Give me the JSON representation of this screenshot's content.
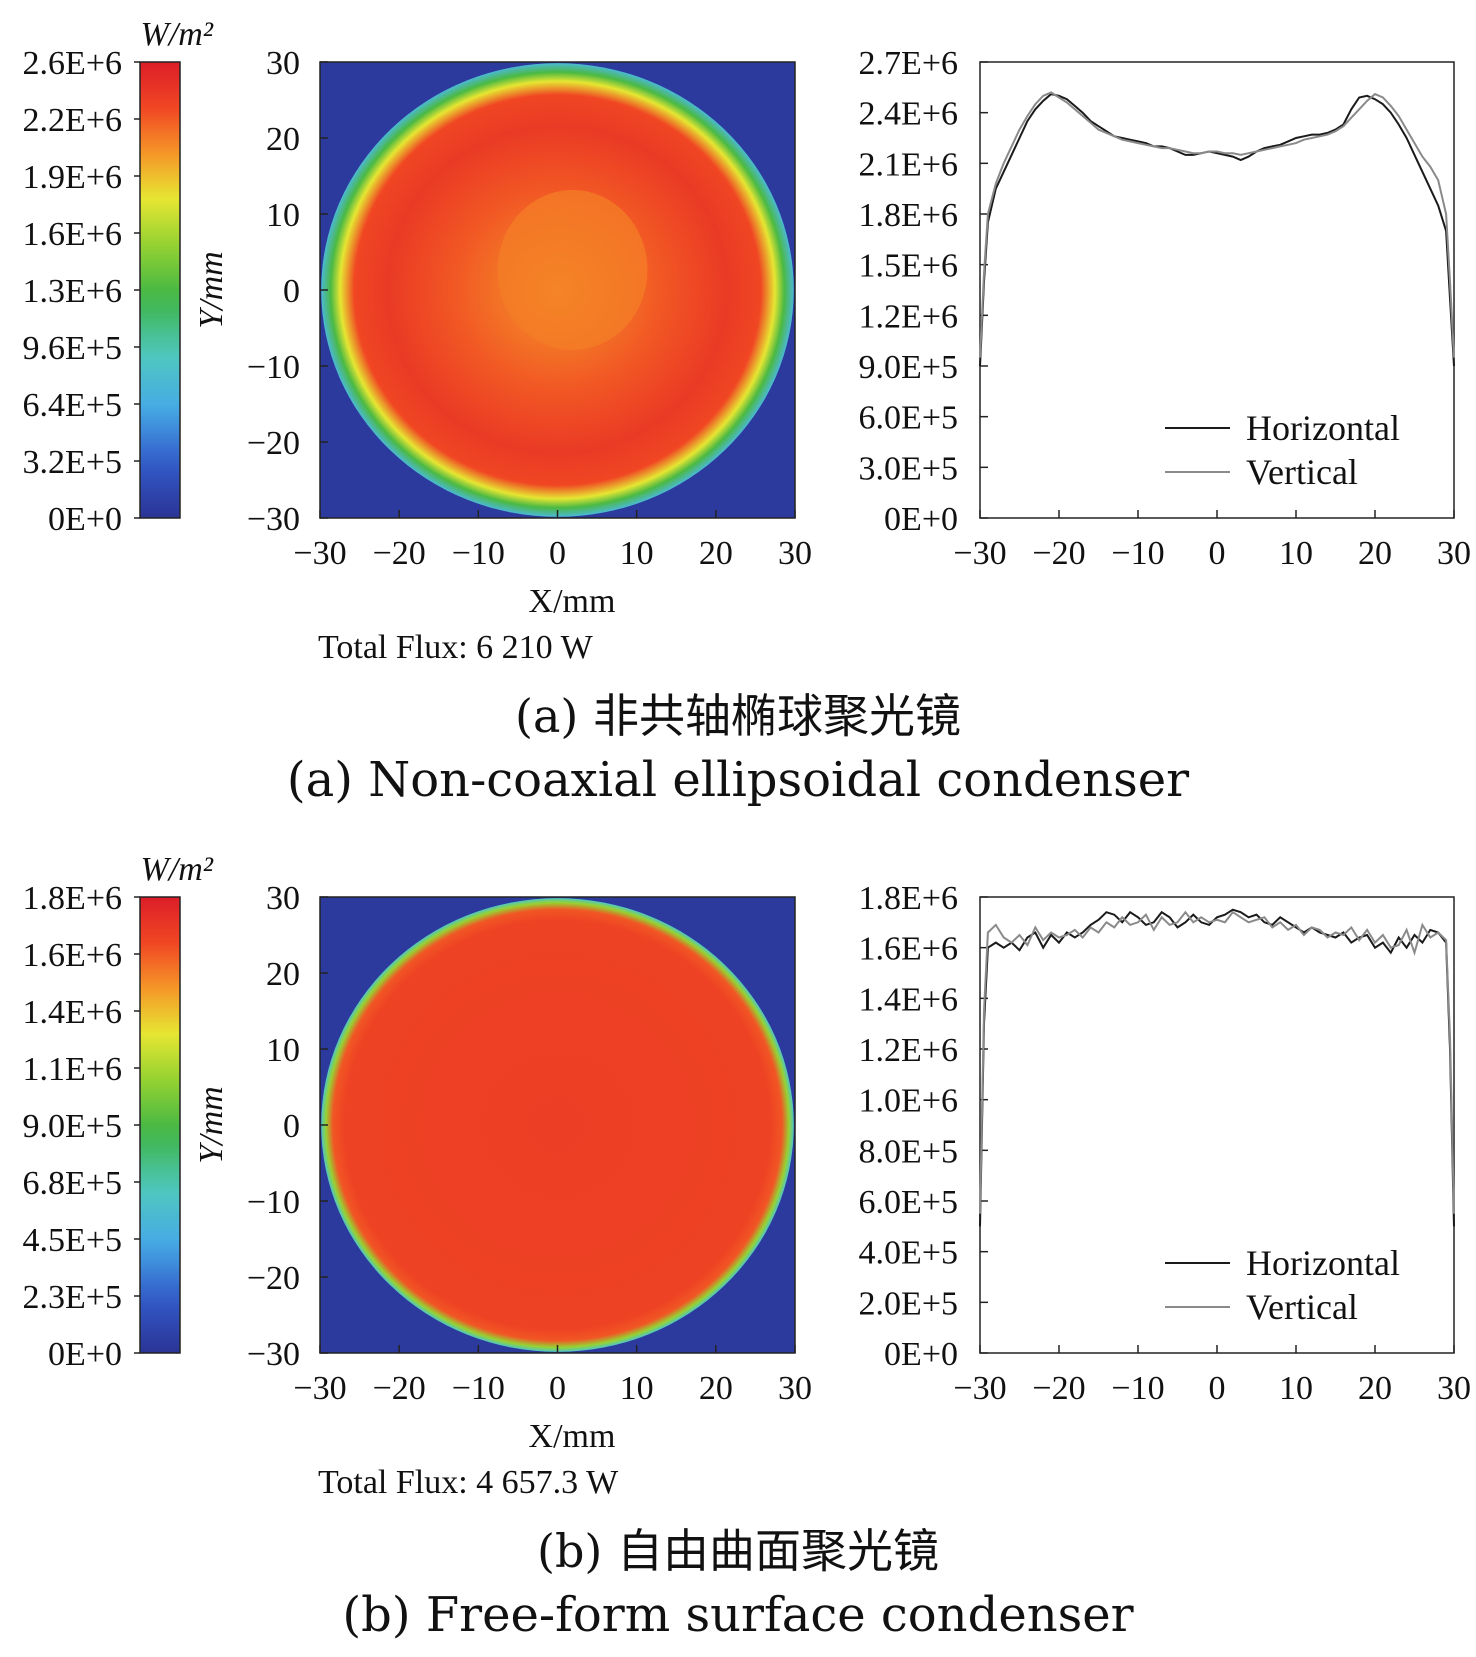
{
  "figures": [
    {
      "colorbar": {
        "unit_label": "W/m²",
        "ticks": [
          "2.6E+6",
          "2.2E+6",
          "1.9E+6",
          "1.6E+6",
          "1.3E+6",
          "9.6E+5",
          "6.4E+5",
          "3.2E+5",
          "0E+0"
        ]
      },
      "map": {
        "y_ticks": [
          "30",
          "20",
          "10",
          "0",
          "−10",
          "−20",
          "−30"
        ],
        "x_ticks": [
          "−30",
          "−20",
          "−10",
          "0",
          "10",
          "20",
          "30"
        ],
        "xlabel": "X/mm",
        "ylabel": "Y/mm",
        "total_flux": "Total Flux: 6 210 W"
      },
      "profile": {
        "y_ticks": [
          "2.7E+6",
          "2.4E+6",
          "2.1E+6",
          "1.8E+6",
          "1.5E+6",
          "1.2E+6",
          "9.0E+5",
          "6.0E+5",
          "3.0E+5",
          "0E+0"
        ],
        "x_ticks": [
          "−30",
          "−20",
          "−10",
          "0",
          "10",
          "20",
          "30"
        ],
        "legend": [
          "Horizontal",
          "Vertical"
        ]
      },
      "caption_cn": "(a) 非共轴椭球聚光镜",
      "caption_en": "(a)  Non-coaxial ellipsoidal condenser"
    },
    {
      "colorbar": {
        "unit_label": "W/m²",
        "ticks": [
          "1.8E+6",
          "1.6E+6",
          "1.4E+6",
          "1.1E+6",
          "9.0E+5",
          "6.8E+5",
          "4.5E+5",
          "2.3E+5",
          "0E+0"
        ]
      },
      "map": {
        "y_ticks": [
          "30",
          "20",
          "10",
          "0",
          "−10",
          "−20",
          "−30"
        ],
        "x_ticks": [
          "−30",
          "−20",
          "−10",
          "0",
          "10",
          "20",
          "30"
        ],
        "xlabel": "X/mm",
        "ylabel": "Y/mm",
        "total_flux": "Total Flux: 4 657.3 W"
      },
      "profile": {
        "y_ticks": [
          "1.8E+6",
          "1.6E+6",
          "1.4E+6",
          "1.2E+6",
          "1.0E+6",
          "8.0E+5",
          "6.0E+5",
          "4.0E+5",
          "2.0E+5",
          "0E+0"
        ],
        "x_ticks": [
          "−30",
          "−20",
          "−10",
          "0",
          "10",
          "20",
          "30"
        ],
        "legend": [
          "Horizontal",
          "Vertical"
        ]
      },
      "caption_cn": "(b) 自由曲面聚光镜",
      "caption_en": "(b)  Free-form surface condenser"
    }
  ],
  "chart_data": [
    {
      "type": "heatmap",
      "title": "",
      "xlabel": "X/mm",
      "ylabel": "Y/mm",
      "xlim": [
        -30,
        30
      ],
      "ylim": [
        -30,
        30
      ],
      "colorbar_range": [
        0,
        2600000
      ],
      "colorbar_label": "W/m²",
      "description_values": {
        "disk_radius_mm": 30,
        "center_W_m2": 2000000,
        "ring_peak_W_m2": 2500000
      },
      "total_flux": "6 210 W"
    },
    {
      "type": "line",
      "xlim": [
        -30,
        30
      ],
      "ylim": [
        0,
        2700000
      ],
      "series": [
        {
          "name": "Horizontal",
          "x": [
            -30,
            -29.5,
            -29,
            -28,
            -27,
            -26,
            -25,
            -24,
            -23,
            -22,
            -21,
            -20,
            -19,
            -18,
            -17,
            -16,
            -15,
            -14,
            -13,
            -12,
            -11,
            -10,
            -9,
            -8,
            -7,
            -6,
            -5,
            -4,
            -3,
            -2,
            -1,
            0,
            1,
            2,
            3,
            4,
            5,
            6,
            7,
            8,
            9,
            10,
            11,
            12,
            13,
            14,
            15,
            16,
            17,
            18,
            19,
            20,
            21,
            22,
            23,
            24,
            25,
            26,
            27,
            28,
            29,
            29.5,
            30
          ],
          "y": [
            900000,
            1400000,
            1750000,
            1950000,
            2050000,
            2150000,
            2250000,
            2350000,
            2420000,
            2470000,
            2510000,
            2500000,
            2480000,
            2440000,
            2400000,
            2350000,
            2320000,
            2290000,
            2260000,
            2250000,
            2240000,
            2230000,
            2220000,
            2200000,
            2200000,
            2190000,
            2170000,
            2150000,
            2150000,
            2160000,
            2170000,
            2160000,
            2150000,
            2140000,
            2120000,
            2140000,
            2170000,
            2190000,
            2200000,
            2210000,
            2230000,
            2250000,
            2260000,
            2270000,
            2270000,
            2280000,
            2300000,
            2330000,
            2420000,
            2490000,
            2500000,
            2480000,
            2450000,
            2400000,
            2330000,
            2250000,
            2150000,
            2050000,
            1950000,
            1850000,
            1700000,
            1300000,
            900000
          ]
        },
        {
          "name": "Vertical",
          "x": [
            -30,
            -29.5,
            -29,
            -28,
            -27,
            -26,
            -25,
            -24,
            -23,
            -22,
            -21,
            -20,
            -19,
            -18,
            -17,
            -16,
            -15,
            -14,
            -13,
            -12,
            -11,
            -10,
            -9,
            -8,
            -7,
            -6,
            -5,
            -4,
            -3,
            -2,
            -1,
            0,
            1,
            2,
            3,
            4,
            5,
            6,
            7,
            8,
            9,
            10,
            11,
            12,
            13,
            14,
            15,
            16,
            17,
            18,
            19,
            20,
            21,
            22,
            23,
            24,
            25,
            26,
            27,
            28,
            29,
            29.5,
            30
          ],
          "y": [
            950000,
            1450000,
            1800000,
            1980000,
            2100000,
            2200000,
            2300000,
            2380000,
            2450000,
            2500000,
            2520000,
            2490000,
            2460000,
            2420000,
            2380000,
            2340000,
            2300000,
            2280000,
            2260000,
            2240000,
            2230000,
            2220000,
            2210000,
            2200000,
            2190000,
            2190000,
            2180000,
            2170000,
            2160000,
            2160000,
            2170000,
            2170000,
            2160000,
            2160000,
            2150000,
            2160000,
            2170000,
            2180000,
            2190000,
            2200000,
            2210000,
            2220000,
            2240000,
            2250000,
            2260000,
            2270000,
            2290000,
            2320000,
            2370000,
            2420000,
            2470000,
            2510000,
            2490000,
            2440000,
            2380000,
            2300000,
            2220000,
            2140000,
            2080000,
            2000000,
            1800000,
            1400000,
            950000
          ]
        }
      ],
      "legend": "bottom-right"
    },
    {
      "type": "heatmap",
      "xlabel": "X/mm",
      "ylabel": "Y/mm",
      "xlim": [
        -30,
        30
      ],
      "ylim": [
        -30,
        30
      ],
      "colorbar_range": [
        0,
        1800000
      ],
      "colorbar_label": "W/m²",
      "description_values": {
        "disk_radius_mm": 30,
        "plateau_W_m2": 1650000
      },
      "total_flux": "4 657.3 W"
    },
    {
      "type": "line",
      "xlim": [
        -30,
        30
      ],
      "ylim": [
        0,
        1800000
      ],
      "series": [
        {
          "name": "Horizontal",
          "x": [
            -30,
            -29.5,
            -29,
            -28,
            -27,
            -26,
            -25,
            -24,
            -23,
            -22,
            -21,
            -20,
            -19,
            -18,
            -17,
            -16,
            -15,
            -14,
            -13,
            -12,
            -11,
            -10,
            -9,
            -8,
            -7,
            -6,
            -5,
            -4,
            -3,
            -2,
            -1,
            0,
            1,
            2,
            3,
            4,
            5,
            6,
            7,
            8,
            9,
            10,
            11,
            12,
            13,
            14,
            15,
            16,
            17,
            18,
            19,
            20,
            21,
            22,
            23,
            24,
            25,
            26,
            27,
            28,
            29,
            29.5,
            30
          ],
          "y": [
            500000,
            1300000,
            1600000,
            1620000,
            1600000,
            1620000,
            1590000,
            1640000,
            1660000,
            1600000,
            1650000,
            1620000,
            1660000,
            1640000,
            1660000,
            1690000,
            1710000,
            1740000,
            1730000,
            1700000,
            1740000,
            1720000,
            1690000,
            1700000,
            1740000,
            1720000,
            1680000,
            1700000,
            1730000,
            1700000,
            1690000,
            1720000,
            1730000,
            1750000,
            1740000,
            1720000,
            1730000,
            1700000,
            1690000,
            1720000,
            1700000,
            1680000,
            1660000,
            1680000,
            1660000,
            1650000,
            1640000,
            1660000,
            1620000,
            1640000,
            1650000,
            1600000,
            1620000,
            1580000,
            1640000,
            1600000,
            1650000,
            1620000,
            1670000,
            1660000,
            1620000,
            1200000,
            500000
          ]
        },
        {
          "name": "Vertical",
          "x": [
            -30,
            -29.5,
            -29,
            -28,
            -27,
            -26,
            -25,
            -24,
            -23,
            -22,
            -21,
            -20,
            -19,
            -18,
            -17,
            -16,
            -15,
            -14,
            -13,
            -12,
            -11,
            -10,
            -9,
            -8,
            -7,
            -6,
            -5,
            -4,
            -3,
            -2,
            -1,
            0,
            1,
            2,
            3,
            4,
            5,
            6,
            7,
            8,
            9,
            10,
            11,
            12,
            13,
            14,
            15,
            16,
            17,
            18,
            19,
            20,
            21,
            22,
            23,
            24,
            25,
            26,
            27,
            28,
            29,
            29.5,
            30
          ],
          "y": [
            550000,
            1350000,
            1660000,
            1690000,
            1640000,
            1620000,
            1650000,
            1610000,
            1680000,
            1630000,
            1660000,
            1640000,
            1650000,
            1670000,
            1640000,
            1680000,
            1660000,
            1700000,
            1680000,
            1720000,
            1690000,
            1700000,
            1730000,
            1670000,
            1720000,
            1690000,
            1700000,
            1740000,
            1700000,
            1720000,
            1700000,
            1710000,
            1700000,
            1740000,
            1720000,
            1700000,
            1710000,
            1720000,
            1680000,
            1700000,
            1670000,
            1690000,
            1650000,
            1680000,
            1670000,
            1640000,
            1660000,
            1650000,
            1680000,
            1630000,
            1670000,
            1620000,
            1650000,
            1600000,
            1610000,
            1670000,
            1580000,
            1690000,
            1640000,
            1660000,
            1630000,
            1250000,
            550000
          ]
        }
      ],
      "legend": "bottom-right"
    }
  ]
}
